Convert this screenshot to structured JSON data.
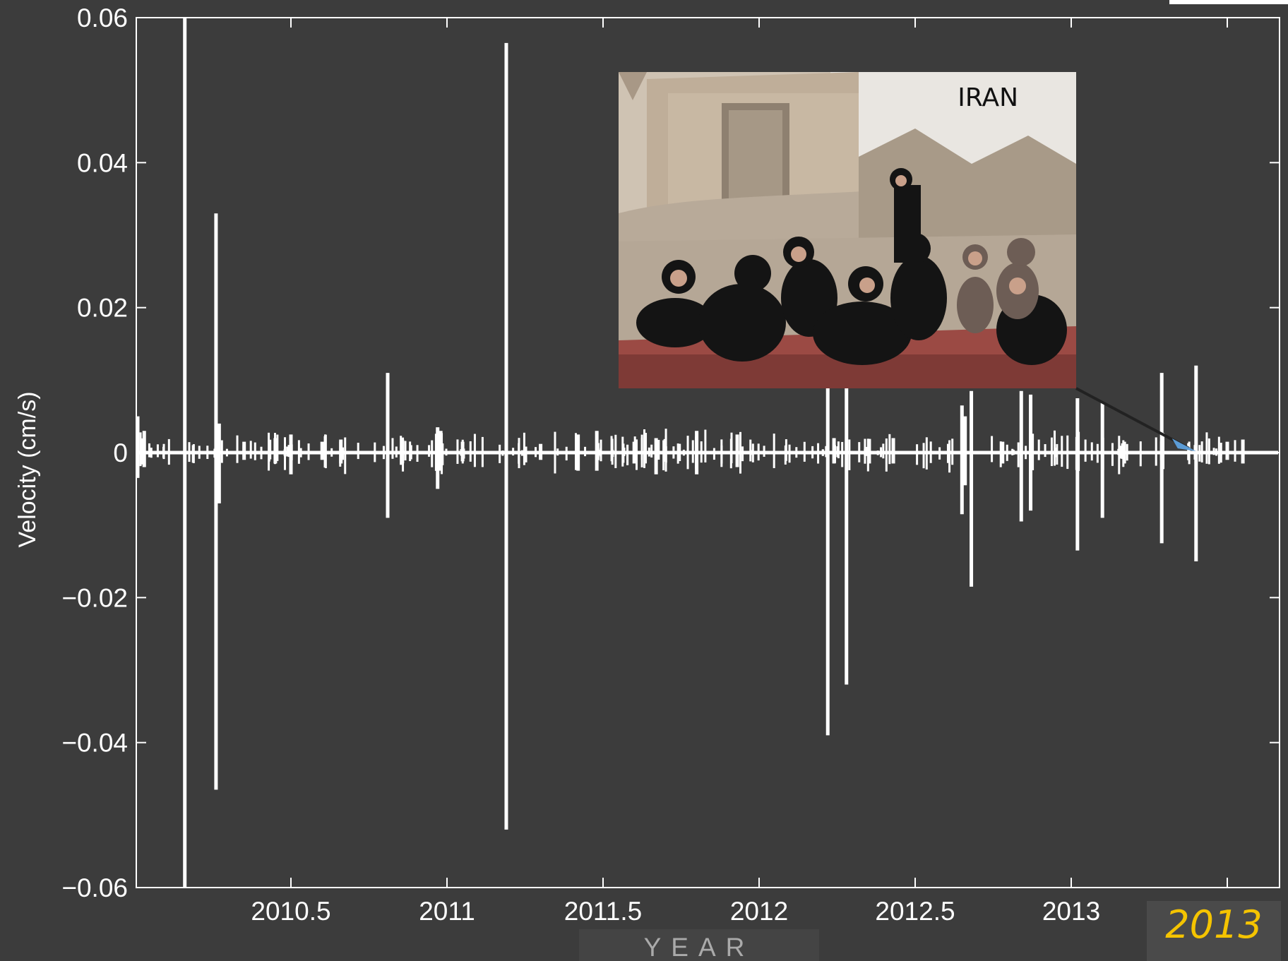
{
  "chart_data": {
    "type": "line",
    "title": "",
    "xlabel": "YEAR",
    "ylabel": "Velocity (cm/s)",
    "xlim": [
      2010.0,
      2013.35
    ],
    "ylim": [
      -0.06,
      0.06
    ],
    "grid": false,
    "x_ticks": [
      2010.5,
      2011,
      2011.5,
      2012,
      2012.5,
      2013
    ],
    "x_tick_labels": [
      "2010.5",
      "2011",
      "2011.5",
      "2012",
      "2012.5",
      "2013"
    ],
    "y_ticks": [
      0.06,
      0.04,
      0.02,
      0,
      -0.02,
      -0.04,
      -0.06
    ],
    "y_tick_labels": [
      "0.06",
      "0.04",
      "0.02",
      "0",
      "−0.02",
      "−0.04",
      "−0.06"
    ],
    "series": [
      {
        "color": "#ffffff",
        "spikes": [
          {
            "x": 2010.0,
            "max": 0.005,
            "min": -0.0035
          },
          {
            "x": 2010.03,
            "max": 0.003,
            "min": -0.002
          },
          {
            "x": 2010.16,
            "max": 0.06,
            "min": -0.06
          },
          {
            "x": 2010.26,
            "max": 0.033,
            "min": -0.0465
          },
          {
            "x": 2010.27,
            "max": 0.004,
            "min": -0.007
          },
          {
            "x": 2010.35,
            "max": 0.0015,
            "min": -0.001
          },
          {
            "x": 2010.45,
            "max": 0.002,
            "min": -0.0015
          },
          {
            "x": 2010.5,
            "max": 0.0025,
            "min": -0.003
          },
          {
            "x": 2010.6,
            "max": 0.0015,
            "min": -0.001
          },
          {
            "x": 2010.66,
            "max": 0.0018,
            "min": -0.0015
          },
          {
            "x": 2010.81,
            "max": 0.011,
            "min": -0.009
          },
          {
            "x": 2010.97,
            "max": 0.0035,
            "min": -0.005
          },
          {
            "x": 2010.98,
            "max": 0.003,
            "min": -0.0025
          },
          {
            "x": 2011.05,
            "max": 0.0015,
            "min": -0.0012
          },
          {
            "x": 2011.19,
            "max": 0.0565,
            "min": -0.052
          },
          {
            "x": 2011.3,
            "max": 0.0012,
            "min": -0.001
          },
          {
            "x": 2011.42,
            "max": 0.0025,
            "min": -0.0025
          },
          {
            "x": 2011.48,
            "max": 0.003,
            "min": -0.0025
          },
          {
            "x": 2011.6,
            "max": 0.0015,
            "min": -0.0015
          },
          {
            "x": 2011.67,
            "max": 0.002,
            "min": -0.003
          },
          {
            "x": 2011.8,
            "max": 0.003,
            "min": -0.003
          },
          {
            "x": 2011.93,
            "max": 0.0025,
            "min": -0.002
          },
          {
            "x": 2012.22,
            "max": 0.011,
            "min": -0.039
          },
          {
            "x": 2012.24,
            "max": 0.002,
            "min": -0.0015
          },
          {
            "x": 2012.28,
            "max": 0.009,
            "min": -0.032
          },
          {
            "x": 2012.43,
            "max": 0.002,
            "min": -0.0015
          },
          {
            "x": 2012.65,
            "max": 0.0065,
            "min": -0.0085
          },
          {
            "x": 2012.66,
            "max": 0.005,
            "min": -0.0045
          },
          {
            "x": 2012.68,
            "max": 0.0085,
            "min": -0.0185
          },
          {
            "x": 2012.78,
            "max": 0.0015,
            "min": -0.0015
          },
          {
            "x": 2012.84,
            "max": 0.0085,
            "min": -0.0095
          },
          {
            "x": 2012.87,
            "max": 0.008,
            "min": -0.008
          },
          {
            "x": 2013.02,
            "max": 0.0075,
            "min": -0.0135
          },
          {
            "x": 2013.1,
            "max": 0.007,
            "min": -0.009
          },
          {
            "x": 2013.17,
            "max": 0.0015,
            "min": -0.0015
          },
          {
            "x": 2013.29,
            "max": 0.011,
            "min": -0.0125
          },
          {
            "x": 2013.4,
            "max": 0.012,
            "min": -0.015
          },
          {
            "x": 2013.5,
            "max": 0.0015,
            "min": -0.001
          },
          {
            "x": 2013.55,
            "max": 0.0018,
            "min": -0.0015
          }
        ]
      }
    ],
    "annotations": [
      {
        "text": "IRAN",
        "kind": "inset-photo",
        "points_to_x": 2013.4
      }
    ]
  },
  "badge": {
    "text": "2013",
    "color": "#f5c400"
  },
  "colors": {
    "background": "#3c3c3c",
    "axes": "#ffffff",
    "signal": "#ffffff",
    "pointer": "#5b9bd5"
  }
}
